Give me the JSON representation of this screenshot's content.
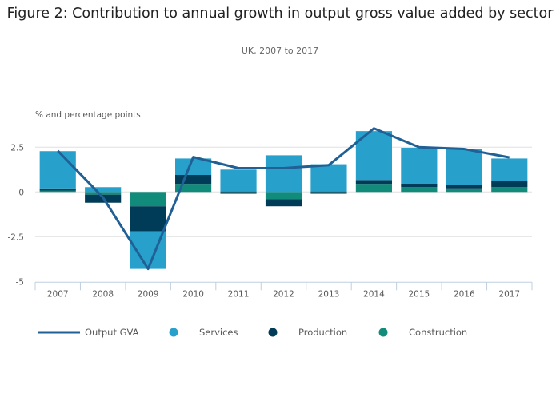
{
  "chart_data": {
    "type": "bar",
    "stacked": true,
    "title": "Figure 2: Contribution to annual growth in output gross value added by sector",
    "subtitle": "UK, 2007 to 2017",
    "xlabel": "",
    "ylabel": "% and percentage points",
    "ylim": [
      -5,
      3.75
    ],
    "yticks": [
      -5,
      -2.5,
      0,
      2.5
    ],
    "ytick_labels": [
      "-5",
      "-2.5",
      "0",
      "2.5"
    ],
    "grid": true,
    "legend_position": "bottom",
    "categories": [
      "2007",
      "2008",
      "2009",
      "2010",
      "2011",
      "2012",
      "2013",
      "2014",
      "2015",
      "2016",
      "2017"
    ],
    "series": [
      {
        "name": "Construction",
        "kind": "bar",
        "color": "#118c7b",
        "values": [
          0.08,
          -0.15,
          -0.8,
          0.45,
          0.05,
          -0.4,
          0.05,
          0.45,
          0.28,
          0.2,
          0.28
        ]
      },
      {
        "name": "Production",
        "kind": "bar",
        "color": "#003c57",
        "values": [
          0.12,
          -0.45,
          -1.4,
          0.5,
          -0.1,
          -0.4,
          -0.1,
          0.22,
          0.18,
          0.18,
          0.32
        ]
      },
      {
        "name": "Services",
        "kind": "bar",
        "color": "#27a0cc",
        "values": [
          2.08,
          0.27,
          -2.1,
          0.92,
          1.2,
          2.05,
          1.5,
          2.73,
          2.01,
          2.0,
          1.27
        ]
      },
      {
        "name": "Output GVA",
        "kind": "line",
        "color": "#206095",
        "values": [
          2.3,
          -0.3,
          -4.3,
          1.95,
          1.33,
          1.33,
          1.5,
          3.55,
          2.5,
          2.4,
          1.93
        ]
      }
    ],
    "legend": [
      {
        "label": "Output GVA",
        "marker": "line",
        "color": "#206095"
      },
      {
        "label": "Services",
        "marker": "circle",
        "color": "#27a0cc"
      },
      {
        "label": "Production",
        "marker": "circle",
        "color": "#003c57"
      },
      {
        "label": "Construction",
        "marker": "circle",
        "color": "#118c7b"
      }
    ]
  }
}
